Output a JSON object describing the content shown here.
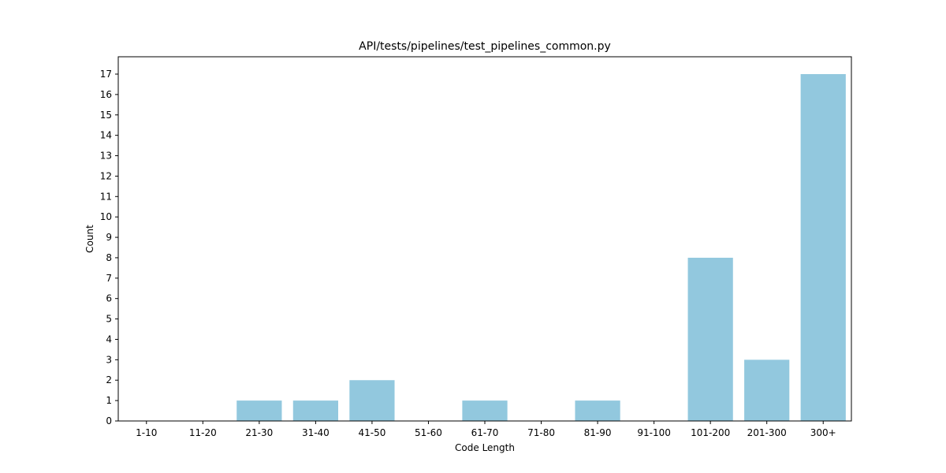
{
  "chart_data": {
    "type": "bar",
    "title": "API/tests/pipelines/test_pipelines_common.py",
    "xlabel": "Code Length",
    "ylabel": "Count",
    "categories": [
      "1-10",
      "11-20",
      "21-30",
      "31-40",
      "41-50",
      "51-60",
      "61-70",
      "71-80",
      "81-90",
      "91-100",
      "101-200",
      "201-300",
      "300+"
    ],
    "values": [
      0,
      0,
      1,
      1,
      2,
      0,
      1,
      0,
      1,
      0,
      8,
      3,
      17
    ],
    "ylim": [
      0,
      17.85
    ],
    "yticks": [
      0,
      1,
      2,
      3,
      4,
      5,
      6,
      7,
      8,
      9,
      10,
      11,
      12,
      13,
      14,
      15,
      16,
      17
    ],
    "bar_color": "#92c8de",
    "grid": false,
    "legend": "none"
  }
}
